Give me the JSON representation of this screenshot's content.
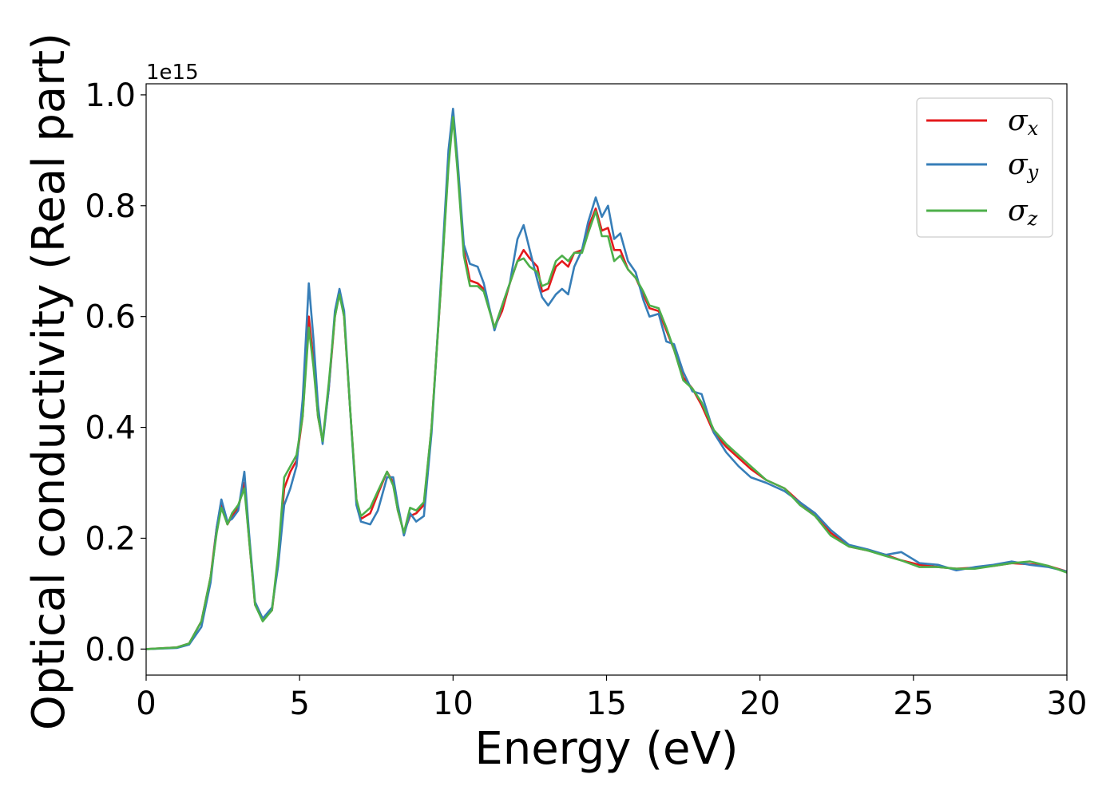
{
  "chart_data": {
    "type": "line",
    "xlabel": "Energy (eV)",
    "ylabel": "Optical conductivity (Real part)",
    "y_offset_text": "1e15",
    "y_scale": 1000000000000000.0,
    "xlim": [
      0,
      30
    ],
    "ylim": [
      -0.047,
      1.02
    ],
    "xticks": [
      0,
      5,
      10,
      15,
      20,
      25,
      30
    ],
    "xtick_labels": [
      "0",
      "5",
      "10",
      "15",
      "20",
      "25",
      "30"
    ],
    "yticks": [
      0.0,
      0.2,
      0.4,
      0.6,
      0.8,
      1.0
    ],
    "ytick_labels": [
      "0.0",
      "0.2",
      "0.4",
      "0.6",
      "0.8",
      "1.0"
    ],
    "grid": false,
    "legend_position": "top-right",
    "series": [
      {
        "name": "σx",
        "name_base": "σ",
        "name_sub": "x",
        "color": "#e41a1c",
        "points": [
          [
            0,
            0.0
          ],
          [
            1.0,
            0.003
          ],
          [
            1.4,
            0.01
          ],
          [
            1.8,
            0.05
          ],
          [
            2.1,
            0.13
          ],
          [
            2.3,
            0.22
          ],
          [
            2.45,
            0.26
          ],
          [
            2.65,
            0.225
          ],
          [
            2.8,
            0.24
          ],
          [
            3.0,
            0.255
          ],
          [
            3.2,
            0.3
          ],
          [
            3.35,
            0.2
          ],
          [
            3.55,
            0.08
          ],
          [
            3.8,
            0.052
          ],
          [
            4.1,
            0.07
          ],
          [
            4.3,
            0.16
          ],
          [
            4.5,
            0.29
          ],
          [
            4.7,
            0.32
          ],
          [
            4.9,
            0.34
          ],
          [
            5.1,
            0.42
          ],
          [
            5.3,
            0.6
          ],
          [
            5.45,
            0.52
          ],
          [
            5.6,
            0.42
          ],
          [
            5.75,
            0.375
          ],
          [
            5.95,
            0.47
          ],
          [
            6.15,
            0.6
          ],
          [
            6.3,
            0.645
          ],
          [
            6.45,
            0.6
          ],
          [
            6.65,
            0.43
          ],
          [
            6.85,
            0.27
          ],
          [
            7.0,
            0.235
          ],
          [
            7.3,
            0.245
          ],
          [
            7.55,
            0.28
          ],
          [
            7.85,
            0.32
          ],
          [
            8.05,
            0.3
          ],
          [
            8.2,
            0.25
          ],
          [
            8.4,
            0.21
          ],
          [
            8.6,
            0.24
          ],
          [
            8.8,
            0.245
          ],
          [
            9.05,
            0.26
          ],
          [
            9.3,
            0.4
          ],
          [
            9.6,
            0.65
          ],
          [
            9.85,
            0.88
          ],
          [
            10.0,
            0.965
          ],
          [
            10.15,
            0.87
          ],
          [
            10.35,
            0.72
          ],
          [
            10.55,
            0.665
          ],
          [
            10.8,
            0.66
          ],
          [
            11.0,
            0.65
          ],
          [
            11.35,
            0.58
          ],
          [
            11.6,
            0.61
          ],
          [
            11.85,
            0.66
          ],
          [
            12.1,
            0.7
          ],
          [
            12.3,
            0.72
          ],
          [
            12.5,
            0.705
          ],
          [
            12.75,
            0.69
          ],
          [
            12.9,
            0.645
          ],
          [
            13.1,
            0.65
          ],
          [
            13.35,
            0.69
          ],
          [
            13.55,
            0.7
          ],
          [
            13.75,
            0.69
          ],
          [
            13.95,
            0.715
          ],
          [
            14.2,
            0.72
          ],
          [
            14.4,
            0.76
          ],
          [
            14.65,
            0.795
          ],
          [
            14.85,
            0.755
          ],
          [
            15.05,
            0.76
          ],
          [
            15.25,
            0.72
          ],
          [
            15.45,
            0.72
          ],
          [
            15.7,
            0.685
          ],
          [
            15.95,
            0.67
          ],
          [
            16.2,
            0.64
          ],
          [
            16.4,
            0.615
          ],
          [
            16.7,
            0.61
          ],
          [
            16.95,
            0.575
          ],
          [
            17.2,
            0.54
          ],
          [
            17.5,
            0.49
          ],
          [
            17.8,
            0.47
          ],
          [
            18.1,
            0.44
          ],
          [
            18.5,
            0.39
          ],
          [
            18.9,
            0.365
          ],
          [
            19.3,
            0.345
          ],
          [
            19.7,
            0.325
          ],
          [
            20.2,
            0.305
          ],
          [
            20.8,
            0.29
          ],
          [
            21.3,
            0.265
          ],
          [
            21.8,
            0.24
          ],
          [
            22.3,
            0.21
          ],
          [
            22.9,
            0.185
          ],
          [
            23.5,
            0.178
          ],
          [
            24.1,
            0.17
          ],
          [
            24.6,
            0.16
          ],
          [
            25.2,
            0.152
          ],
          [
            25.8,
            0.148
          ],
          [
            26.4,
            0.145
          ],
          [
            27.0,
            0.147
          ],
          [
            27.6,
            0.15
          ],
          [
            28.2,
            0.155
          ],
          [
            28.8,
            0.153
          ],
          [
            29.4,
            0.15
          ],
          [
            30.0,
            0.14
          ]
        ]
      },
      {
        "name": "σy",
        "name_base": "σ",
        "name_sub": "y",
        "color": "#377eb8",
        "points": [
          [
            0,
            0.0
          ],
          [
            1.0,
            0.002
          ],
          [
            1.4,
            0.008
          ],
          [
            1.8,
            0.04
          ],
          [
            2.1,
            0.12
          ],
          [
            2.3,
            0.22
          ],
          [
            2.45,
            0.27
          ],
          [
            2.65,
            0.23
          ],
          [
            2.8,
            0.235
          ],
          [
            3.0,
            0.25
          ],
          [
            3.2,
            0.32
          ],
          [
            3.35,
            0.21
          ],
          [
            3.55,
            0.085
          ],
          [
            3.8,
            0.055
          ],
          [
            4.1,
            0.075
          ],
          [
            4.3,
            0.15
          ],
          [
            4.5,
            0.26
          ],
          [
            4.7,
            0.29
          ],
          [
            4.9,
            0.33
          ],
          [
            5.1,
            0.45
          ],
          [
            5.3,
            0.66
          ],
          [
            5.45,
            0.56
          ],
          [
            5.6,
            0.44
          ],
          [
            5.75,
            0.37
          ],
          [
            5.95,
            0.47
          ],
          [
            6.15,
            0.61
          ],
          [
            6.3,
            0.65
          ],
          [
            6.45,
            0.61
          ],
          [
            6.65,
            0.43
          ],
          [
            6.85,
            0.26
          ],
          [
            7.0,
            0.23
          ],
          [
            7.3,
            0.225
          ],
          [
            7.55,
            0.25
          ],
          [
            7.85,
            0.31
          ],
          [
            8.05,
            0.31
          ],
          [
            8.2,
            0.26
          ],
          [
            8.4,
            0.205
          ],
          [
            8.6,
            0.245
          ],
          [
            8.8,
            0.23
          ],
          [
            9.05,
            0.24
          ],
          [
            9.3,
            0.39
          ],
          [
            9.6,
            0.66
          ],
          [
            9.85,
            0.9
          ],
          [
            10.0,
            0.975
          ],
          [
            10.15,
            0.88
          ],
          [
            10.35,
            0.73
          ],
          [
            10.55,
            0.695
          ],
          [
            10.8,
            0.69
          ],
          [
            11.0,
            0.66
          ],
          [
            11.35,
            0.575
          ],
          [
            11.6,
            0.62
          ],
          [
            11.85,
            0.66
          ],
          [
            12.1,
            0.74
          ],
          [
            12.3,
            0.765
          ],
          [
            12.5,
            0.72
          ],
          [
            12.75,
            0.665
          ],
          [
            12.9,
            0.635
          ],
          [
            13.1,
            0.62
          ],
          [
            13.35,
            0.64
          ],
          [
            13.55,
            0.65
          ],
          [
            13.75,
            0.64
          ],
          [
            13.95,
            0.69
          ],
          [
            14.2,
            0.72
          ],
          [
            14.4,
            0.77
          ],
          [
            14.65,
            0.815
          ],
          [
            14.85,
            0.78
          ],
          [
            15.05,
            0.8
          ],
          [
            15.25,
            0.74
          ],
          [
            15.45,
            0.75
          ],
          [
            15.7,
            0.7
          ],
          [
            15.95,
            0.68
          ],
          [
            16.2,
            0.63
          ],
          [
            16.4,
            0.6
          ],
          [
            16.7,
            0.605
          ],
          [
            16.95,
            0.555
          ],
          [
            17.2,
            0.55
          ],
          [
            17.5,
            0.5
          ],
          [
            17.8,
            0.465
          ],
          [
            18.1,
            0.46
          ],
          [
            18.5,
            0.39
          ],
          [
            18.9,
            0.355
          ],
          [
            19.3,
            0.33
          ],
          [
            19.7,
            0.31
          ],
          [
            20.2,
            0.3
          ],
          [
            20.8,
            0.285
          ],
          [
            21.3,
            0.265
          ],
          [
            21.8,
            0.245
          ],
          [
            22.3,
            0.215
          ],
          [
            22.9,
            0.188
          ],
          [
            23.5,
            0.18
          ],
          [
            24.1,
            0.17
          ],
          [
            24.6,
            0.175
          ],
          [
            25.2,
            0.155
          ],
          [
            25.8,
            0.152
          ],
          [
            26.4,
            0.142
          ],
          [
            27.0,
            0.148
          ],
          [
            27.6,
            0.152
          ],
          [
            28.2,
            0.158
          ],
          [
            28.8,
            0.152
          ],
          [
            29.4,
            0.148
          ],
          [
            30.0,
            0.14
          ]
        ]
      },
      {
        "name": "σz",
        "name_base": "σ",
        "name_sub": "z",
        "color": "#4daf4a",
        "points": [
          [
            0,
            0.0
          ],
          [
            1.0,
            0.003
          ],
          [
            1.4,
            0.01
          ],
          [
            1.8,
            0.05
          ],
          [
            2.1,
            0.13
          ],
          [
            2.3,
            0.21
          ],
          [
            2.45,
            0.255
          ],
          [
            2.65,
            0.225
          ],
          [
            2.8,
            0.245
          ],
          [
            3.0,
            0.26
          ],
          [
            3.2,
            0.29
          ],
          [
            3.35,
            0.2
          ],
          [
            3.55,
            0.08
          ],
          [
            3.8,
            0.05
          ],
          [
            4.1,
            0.07
          ],
          [
            4.3,
            0.17
          ],
          [
            4.5,
            0.31
          ],
          [
            4.7,
            0.33
          ],
          [
            4.9,
            0.35
          ],
          [
            5.1,
            0.42
          ],
          [
            5.3,
            0.58
          ],
          [
            5.45,
            0.51
          ],
          [
            5.6,
            0.42
          ],
          [
            5.75,
            0.375
          ],
          [
            5.95,
            0.48
          ],
          [
            6.15,
            0.6
          ],
          [
            6.3,
            0.64
          ],
          [
            6.45,
            0.6
          ],
          [
            6.65,
            0.43
          ],
          [
            6.85,
            0.27
          ],
          [
            7.0,
            0.24
          ],
          [
            7.3,
            0.255
          ],
          [
            7.55,
            0.285
          ],
          [
            7.85,
            0.32
          ],
          [
            8.05,
            0.295
          ],
          [
            8.2,
            0.25
          ],
          [
            8.4,
            0.21
          ],
          [
            8.6,
            0.255
          ],
          [
            8.8,
            0.25
          ],
          [
            9.05,
            0.265
          ],
          [
            9.3,
            0.4
          ],
          [
            9.6,
            0.65
          ],
          [
            9.85,
            0.87
          ],
          [
            10.0,
            0.96
          ],
          [
            10.15,
            0.86
          ],
          [
            10.35,
            0.71
          ],
          [
            10.55,
            0.655
          ],
          [
            10.8,
            0.655
          ],
          [
            11.0,
            0.645
          ],
          [
            11.35,
            0.58
          ],
          [
            11.6,
            0.62
          ],
          [
            11.85,
            0.66
          ],
          [
            12.1,
            0.7
          ],
          [
            12.3,
            0.705
          ],
          [
            12.5,
            0.69
          ],
          [
            12.75,
            0.68
          ],
          [
            12.9,
            0.655
          ],
          [
            13.1,
            0.66
          ],
          [
            13.35,
            0.7
          ],
          [
            13.55,
            0.71
          ],
          [
            13.75,
            0.7
          ],
          [
            13.95,
            0.715
          ],
          [
            14.2,
            0.715
          ],
          [
            14.4,
            0.75
          ],
          [
            14.65,
            0.79
          ],
          [
            14.85,
            0.745
          ],
          [
            15.05,
            0.745
          ],
          [
            15.25,
            0.7
          ],
          [
            15.45,
            0.71
          ],
          [
            15.7,
            0.685
          ],
          [
            15.95,
            0.67
          ],
          [
            16.2,
            0.645
          ],
          [
            16.4,
            0.62
          ],
          [
            16.7,
            0.615
          ],
          [
            16.95,
            0.58
          ],
          [
            17.2,
            0.54
          ],
          [
            17.5,
            0.485
          ],
          [
            17.8,
            0.47
          ],
          [
            18.1,
            0.445
          ],
          [
            18.5,
            0.395
          ],
          [
            18.9,
            0.37
          ],
          [
            19.3,
            0.35
          ],
          [
            19.7,
            0.33
          ],
          [
            20.2,
            0.305
          ],
          [
            20.8,
            0.29
          ],
          [
            21.3,
            0.26
          ],
          [
            21.8,
            0.24
          ],
          [
            22.3,
            0.205
          ],
          [
            22.9,
            0.185
          ],
          [
            23.5,
            0.178
          ],
          [
            24.1,
            0.168
          ],
          [
            24.6,
            0.16
          ],
          [
            25.2,
            0.148
          ],
          [
            25.8,
            0.148
          ],
          [
            26.4,
            0.145
          ],
          [
            27.0,
            0.145
          ],
          [
            27.6,
            0.15
          ],
          [
            28.2,
            0.155
          ],
          [
            28.8,
            0.158
          ],
          [
            29.4,
            0.15
          ],
          [
            30.0,
            0.138
          ]
        ]
      }
    ]
  }
}
